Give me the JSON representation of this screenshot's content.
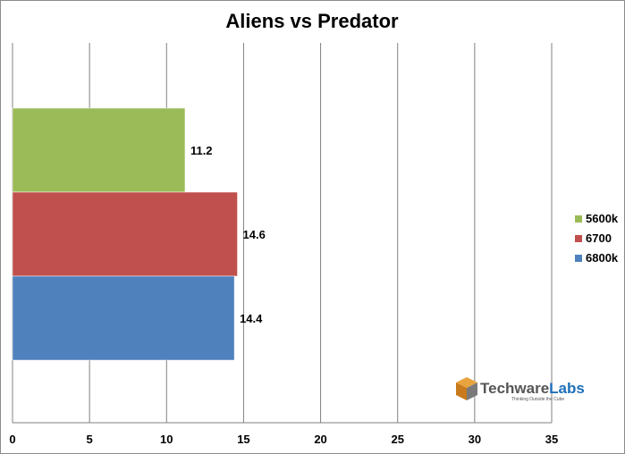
{
  "chart_data": {
    "type": "bar",
    "orientation": "horizontal",
    "title": "Aliens vs Predator",
    "xlim": [
      0,
      35
    ],
    "xticks": [
      0,
      5,
      10,
      15,
      20,
      25,
      30,
      35
    ],
    "grid": "vertical",
    "legend_position": "right",
    "series": [
      {
        "name": "5600k",
        "value": 11.2,
        "label": "11.2",
        "color": "#9bbb59"
      },
      {
        "name": "6700",
        "value": 14.6,
        "label": "14.6",
        "color": "#c0504d"
      },
      {
        "name": "6800k",
        "value": 14.4,
        "label": "14.4",
        "color": "#4f81bd"
      }
    ]
  },
  "watermark": {
    "brand": "Techware",
    "brand_suffix": "Labs",
    "tagline": "Thinking Outside the Cube",
    "logo_icon": "cube-icon"
  }
}
